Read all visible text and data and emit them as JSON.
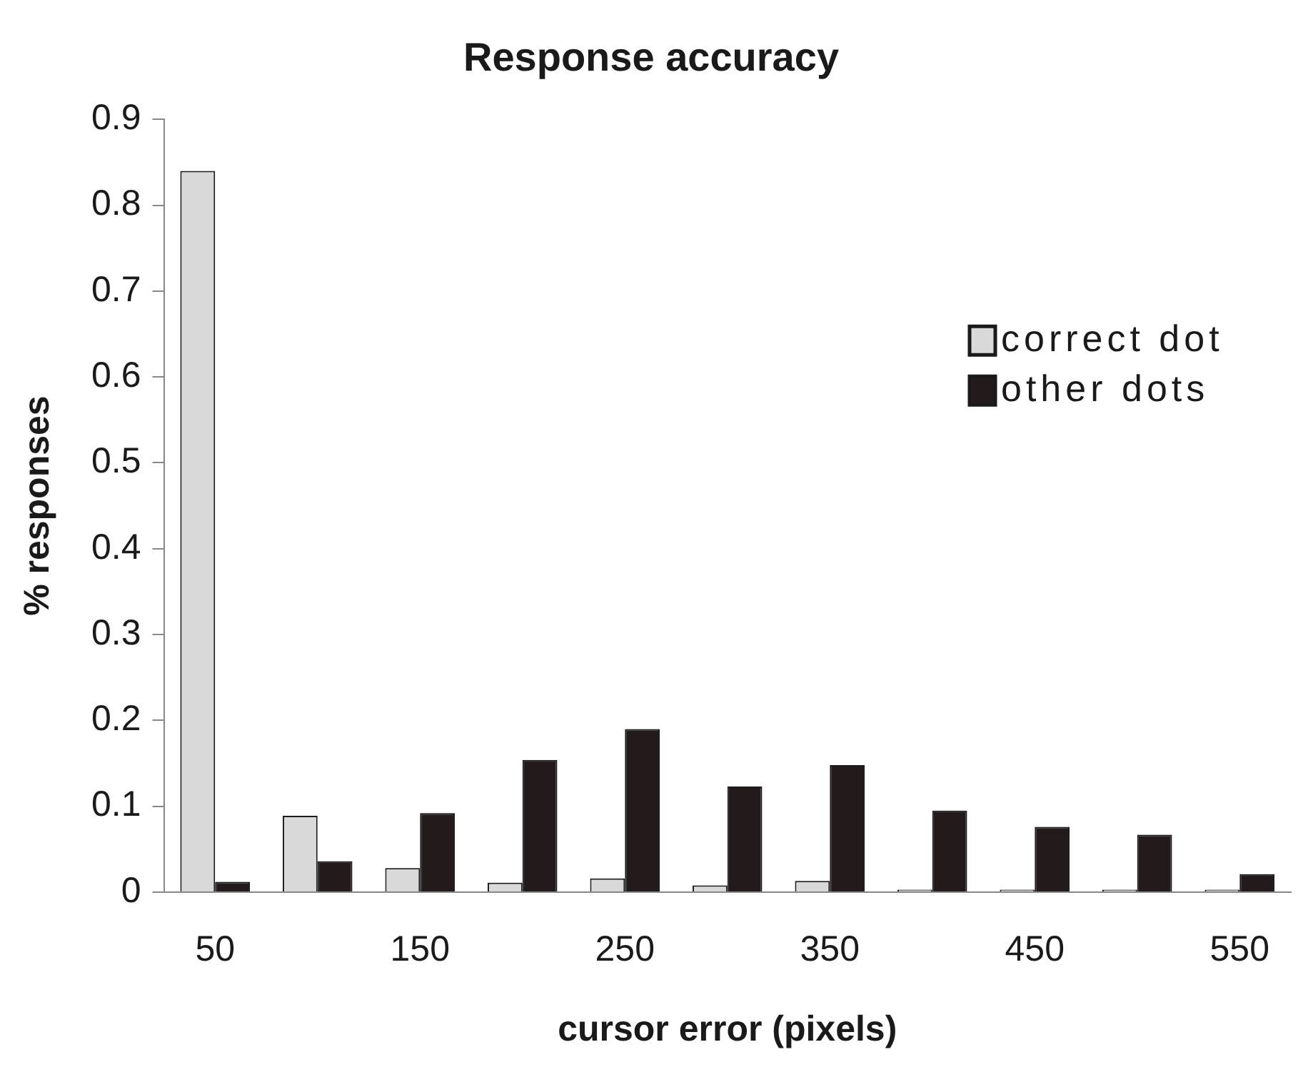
{
  "chart_data": {
    "type": "bar",
    "title": "Response accuracy",
    "xlabel": "cursor error (pixels)",
    "ylabel": "% responses",
    "categories": [
      "50",
      null,
      "150",
      null,
      "250",
      null,
      "350",
      null,
      "450",
      null,
      "550"
    ],
    "series": [
      {
        "name": "correct dot",
        "color": "#d9d9d9",
        "values": [
          0.84,
          0.089,
          0.028,
          0.011,
          0.016,
          0.008,
          0.013,
          0.003,
          0.003,
          0.003,
          0.003
        ]
      },
      {
        "name": "other dots",
        "color": "#231a1c",
        "values": [
          0.012,
          0.036,
          0.092,
          0.154,
          0.19,
          0.123,
          0.148,
          0.095,
          0.076,
          0.067,
          0.021
        ]
      }
    ],
    "ylim": [
      0,
      0.9
    ],
    "yticks": [
      {
        "value": 0,
        "label": "0"
      },
      0.1,
      0.2,
      0.3,
      0.4,
      0.5,
      0.6,
      0.7,
      0.8,
      0.9
    ],
    "grid": false,
    "legend": "top right"
  }
}
